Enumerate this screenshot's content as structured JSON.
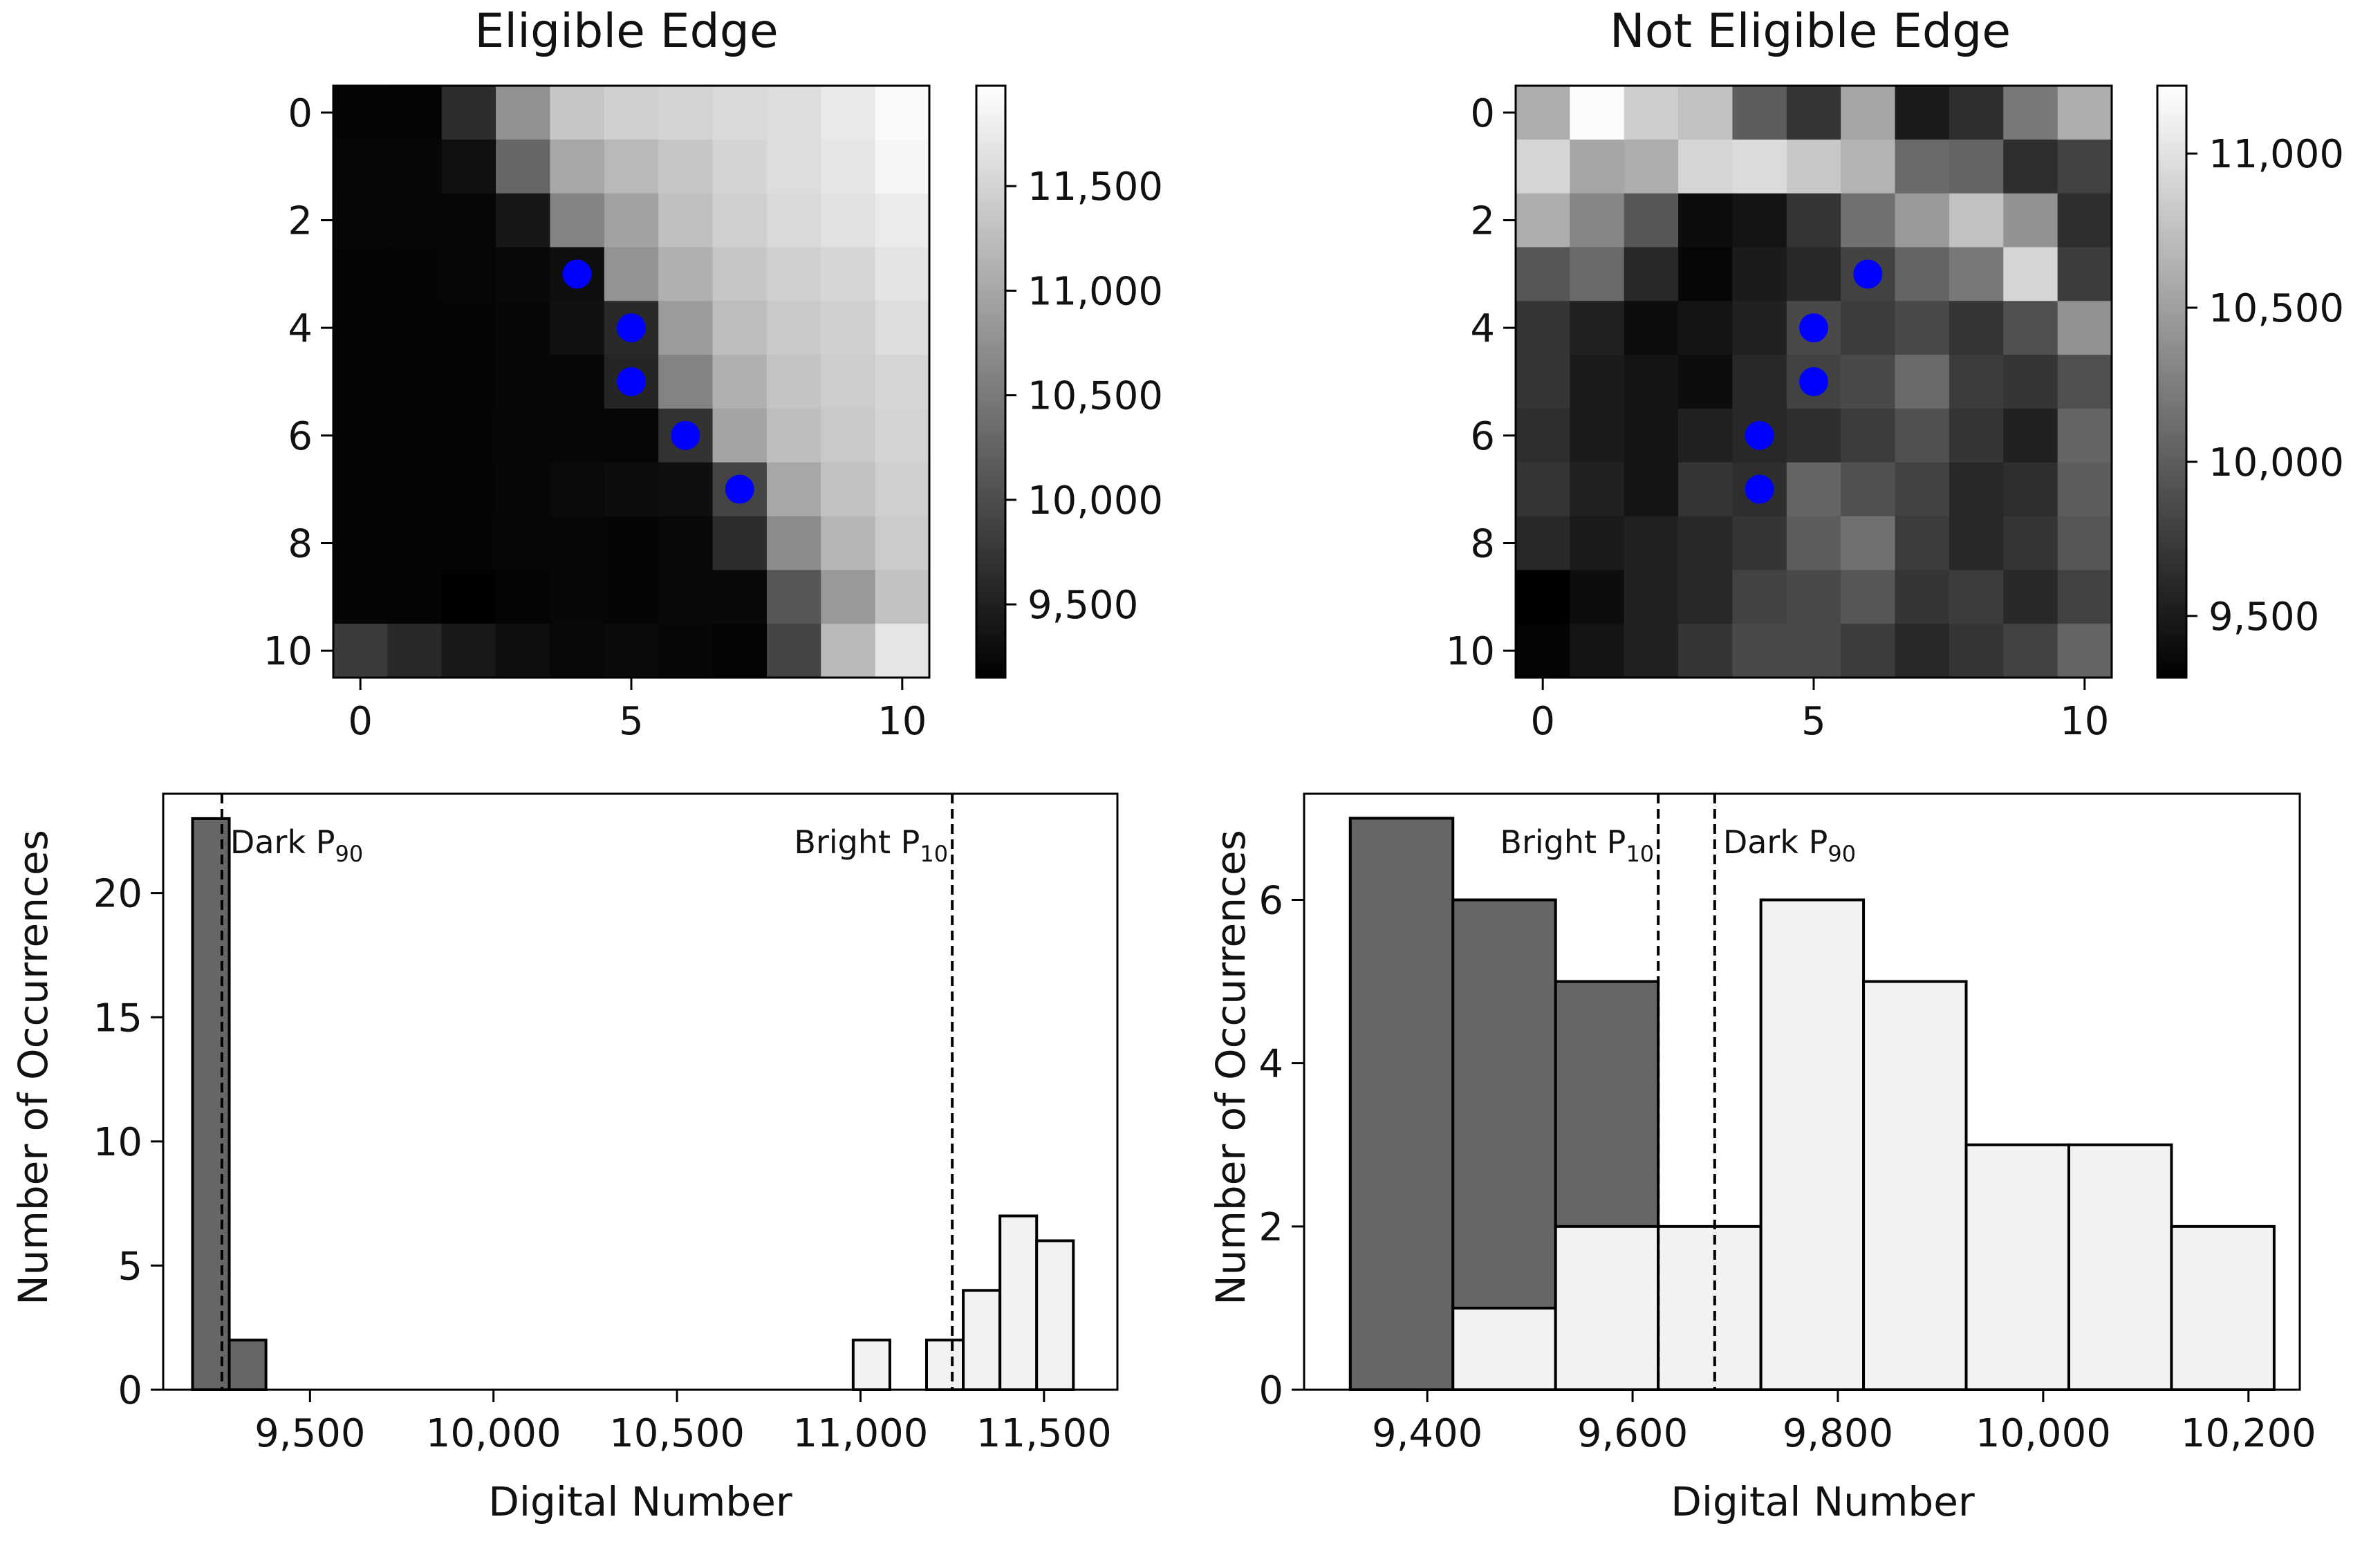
{
  "chart_data": [
    {
      "id": "heatmap_eligible",
      "type": "heatmap",
      "title": "Eligible Edge",
      "x_ticks": [
        0,
        5,
        10
      ],
      "y_ticks": [
        0,
        2,
        4,
        6,
        8,
        10
      ],
      "colorbar": {
        "min": 9150,
        "max": 11980,
        "ticks": [
          9500,
          10000,
          10500,
          11000,
          11500
        ],
        "tick_labels": [
          "9,500",
          "10,000",
          "10,500",
          "11,000",
          "11,500"
        ]
      },
      "grid": [
        [
          9210,
          9190,
          9650,
          10760,
          11350,
          11450,
          11500,
          11560,
          11600,
          11750,
          11920
        ],
        [
          9230,
          9220,
          9330,
          10280,
          11000,
          11200,
          11350,
          11500,
          11600,
          11700,
          11880
        ],
        [
          9220,
          9230,
          9220,
          9400,
          10600,
          10950,
          11280,
          11450,
          11560,
          11650,
          11760
        ],
        [
          9200,
          9210,
          9220,
          9250,
          9300,
          10780,
          11100,
          11350,
          11460,
          11520,
          11680
        ],
        [
          9200,
          9200,
          9210,
          9230,
          9330,
          9600,
          10870,
          11250,
          11380,
          11460,
          11600
        ],
        [
          9200,
          9200,
          9210,
          9230,
          9230,
          9560,
          10600,
          11100,
          11320,
          11420,
          11520
        ],
        [
          9200,
          9200,
          9200,
          9220,
          9220,
          9220,
          9700,
          10960,
          11260,
          11380,
          11500
        ],
        [
          9210,
          9210,
          9210,
          9230,
          9260,
          9290,
          9310,
          9900,
          11000,
          11300,
          11450
        ],
        [
          9200,
          9200,
          9200,
          9220,
          9220,
          9210,
          9240,
          9650,
          10700,
          11160,
          11400
        ],
        [
          9210,
          9190,
          9160,
          9190,
          9230,
          9210,
          9240,
          9250,
          10100,
          10850,
          11300
        ],
        [
          9800,
          9600,
          9430,
          9300,
          9250,
          9270,
          9230,
          9190,
          9900,
          11200,
          11700
        ]
      ],
      "points": [
        [
          4,
          3
        ],
        [
          5,
          4
        ],
        [
          5,
          5
        ],
        [
          6,
          6
        ],
        [
          7,
          7
        ]
      ]
    },
    {
      "id": "heatmap_not_eligible",
      "type": "heatmap",
      "title": "Not Eligible Edge",
      "x_ticks": [
        0,
        5,
        10
      ],
      "y_ticks": [
        0,
        2,
        4,
        6,
        8,
        10
      ],
      "colorbar": {
        "min": 9300,
        "max": 11220,
        "ticks": [
          9500,
          10000,
          10500,
          11000
        ],
        "tick_labels": [
          "9,500",
          "10,000",
          "10,500",
          "11,000"
        ]
      },
      "grid": [
        [
          10600,
          11200,
          10850,
          10750,
          10000,
          9700,
          10550,
          9500,
          9650,
          10200,
          10600
        ],
        [
          10900,
          10550,
          10600,
          10900,
          10950,
          10800,
          10650,
          10100,
          10050,
          9650,
          9800
        ],
        [
          10600,
          10300,
          9950,
          9400,
          9450,
          9700,
          10150,
          10450,
          10750,
          10400,
          9650
        ],
        [
          9950,
          10100,
          9600,
          9350,
          9500,
          9600,
          9800,
          10050,
          10200,
          10900,
          9750
        ],
        [
          9700,
          9550,
          9400,
          9450,
          9550,
          9850,
          9750,
          9850,
          9700,
          9900,
          10400
        ],
        [
          9700,
          9500,
          9450,
          9400,
          9600,
          9800,
          9850,
          10100,
          9750,
          9700,
          9900
        ],
        [
          9650,
          9500,
          9450,
          9550,
          9600,
          9650,
          9750,
          9900,
          9700,
          9550,
          10050
        ],
        [
          9700,
          9550,
          9450,
          9700,
          9650,
          10050,
          9900,
          9800,
          9600,
          9650,
          10000
        ],
        [
          9600,
          9500,
          9550,
          9600,
          9700,
          10000,
          10150,
          9750,
          9600,
          9700,
          9950
        ],
        [
          9300,
          9400,
          9550,
          9600,
          9800,
          9850,
          9950,
          9700,
          9750,
          9600,
          9800
        ],
        [
          9330,
          9450,
          9550,
          9700,
          9850,
          9850,
          9750,
          9600,
          9700,
          9800,
          10050
        ]
      ],
      "points": [
        [
          6,
          3
        ],
        [
          5,
          4
        ],
        [
          5,
          5
        ],
        [
          4,
          6
        ],
        [
          4,
          7
        ]
      ]
    },
    {
      "id": "hist_eligible",
      "type": "bar",
      "xlabel": "Digital Number",
      "ylabel": "Number of Occurrences",
      "xlim": [
        9100,
        11700
      ],
      "ylim": [
        0,
        24
      ],
      "x_ticks": [
        9500,
        10000,
        10500,
        11000,
        11500
      ],
      "x_tick_labels": [
        "9,500",
        "10,000",
        "10,500",
        "11,000",
        "11,500"
      ],
      "y_ticks": [
        0,
        5,
        10,
        15,
        20
      ],
      "series": [
        {
          "name": "dark",
          "color": "#666666",
          "bins": [
            [
              9180,
              9280,
              23
            ],
            [
              9280,
              9380,
              2
            ]
          ]
        },
        {
          "name": "bright",
          "color": "#f2f2f2",
          "bins": [
            [
              10980,
              11080,
              2
            ],
            [
              11180,
              11280,
              2
            ],
            [
              11280,
              11380,
              4
            ],
            [
              11380,
              11480,
              7
            ],
            [
              11480,
              11580,
              6
            ]
          ]
        }
      ],
      "vlines": [
        {
          "x": 9260,
          "label": "Dark P",
          "sub": "90",
          "side": "right"
        },
        {
          "x": 11250,
          "label": "Bright P",
          "sub": "10",
          "side": "left"
        }
      ]
    },
    {
      "id": "hist_not_eligible",
      "type": "bar",
      "xlabel": "Digital Number",
      "ylabel": "Number of Occurrences",
      "xlim": [
        9280,
        10250
      ],
      "ylim": [
        0,
        7.3
      ],
      "x_ticks": [
        9400,
        9600,
        9800,
        10000,
        10200
      ],
      "x_tick_labels": [
        "9,400",
        "9,600",
        "9,800",
        "10,000",
        "10,200"
      ],
      "y_ticks": [
        0,
        2,
        4,
        6
      ],
      "series": [
        {
          "name": "dark",
          "color": "#666666",
          "bins": [
            [
              9325,
              9425,
              7
            ],
            [
              9425,
              9525,
              6
            ],
            [
              9525,
              9625,
              5
            ]
          ]
        },
        {
          "name": "bright",
          "color": "#f2f2f2",
          "bins": [
            [
              9425,
              9525,
              1
            ],
            [
              9525,
              9625,
              2
            ],
            [
              9625,
              9725,
              2
            ],
            [
              9725,
              9825,
              6
            ],
            [
              9825,
              9925,
              5
            ],
            [
              9925,
              10025,
              3
            ],
            [
              10025,
              10125,
              3
            ],
            [
              10125,
              10225,
              2
            ]
          ]
        }
      ],
      "vlines": [
        {
          "x": 9625,
          "label": "Bright P",
          "sub": "10",
          "side": "left"
        },
        {
          "x": 9680,
          "label": "Dark P",
          "sub": "90",
          "side": "right"
        }
      ]
    }
  ]
}
